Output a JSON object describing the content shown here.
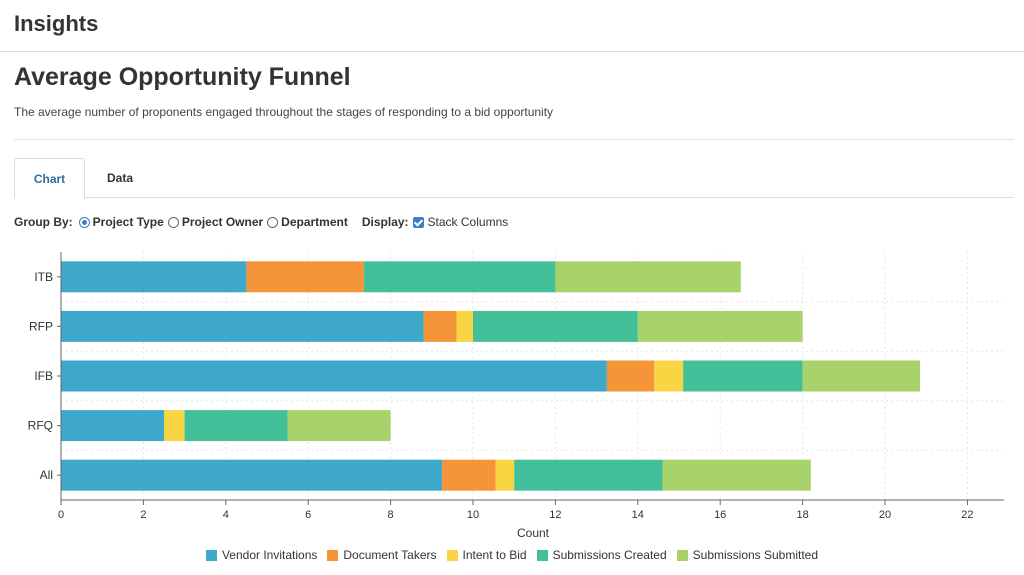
{
  "header": {
    "title": "Insights"
  },
  "page": {
    "title": "Average Opportunity Funnel",
    "description": "The average number of proponents engaged throughout the stages of responding to a bid opportunity"
  },
  "tabs": [
    {
      "label": "Chart",
      "active": true
    },
    {
      "label": "Data",
      "active": false
    }
  ],
  "controls": {
    "group_by_label": "Group By:",
    "options": [
      {
        "label": "Project Type",
        "selected": true
      },
      {
        "label": "Project Owner",
        "selected": false
      },
      {
        "label": "Department",
        "selected": false
      }
    ],
    "display_label": "Display:",
    "stack_columns_label": "Stack Columns",
    "stack_columns_checked": true
  },
  "colors": {
    "Vendor Invitations": "#3fa9cb",
    "Document Takers": "#f5953a",
    "Intent to Bid": "#f9d443",
    "Submissions Created": "#43bf9a",
    "Submissions Submitted": "#a8d36a"
  },
  "chart_data": {
    "type": "bar",
    "orientation": "horizontal",
    "stacked": true,
    "categories": [
      "ITB",
      "RFP",
      "IFB",
      "RFQ",
      "All"
    ],
    "series": [
      {
        "name": "Vendor Invitations",
        "values": [
          4.5,
          8.8,
          13.25,
          2.5,
          9.25
        ]
      },
      {
        "name": "Document Takers",
        "values": [
          2.85,
          0.8,
          1.15,
          0,
          1.3
        ]
      },
      {
        "name": "Intent to Bid",
        "values": [
          0,
          0.4,
          0.7,
          0.5,
          0.45
        ]
      },
      {
        "name": "Submissions Created",
        "values": [
          4.65,
          4.0,
          2.9,
          2.5,
          3.6
        ]
      },
      {
        "name": "Submissions Submitted",
        "values": [
          4.5,
          4.0,
          2.85,
          2.5,
          3.6
        ]
      }
    ],
    "xlabel": "Count",
    "ylabel": "",
    "xlim": [
      0,
      23
    ],
    "xticks": [
      0,
      2,
      4,
      6,
      8,
      10,
      12,
      14,
      16,
      18,
      20,
      22
    ],
    "grid": true,
    "legend": "bottom"
  }
}
